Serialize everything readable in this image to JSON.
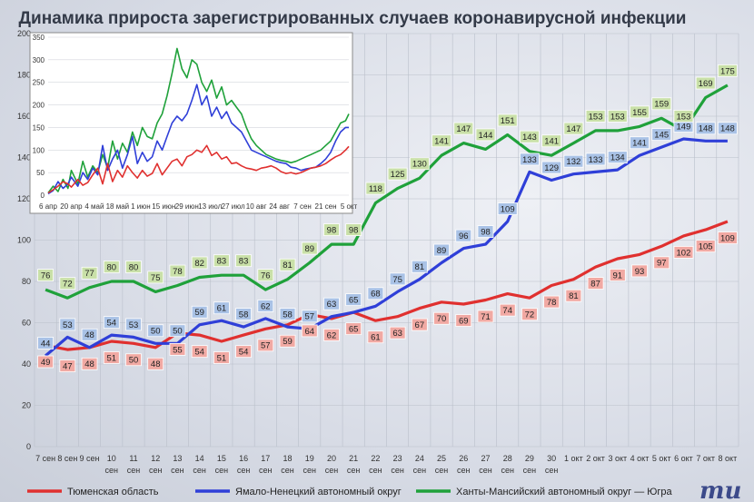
{
  "chart_data": [
    {
      "type": "line",
      "title": "Динамика прироста зарегистрированных случаев коронавирусной инфекции",
      "categories": [
        "7 сен",
        "8 сен",
        "9 сен",
        "10 сен",
        "11 сен",
        "12 сен",
        "13 сен",
        "14 сен",
        "15 сен",
        "16 сен",
        "17 сен",
        "18 сен",
        "19 сен",
        "20 сен",
        "21 сен",
        "22 сен",
        "23 сен",
        "24 сен",
        "25 сен",
        "26 сен",
        "27 сен",
        "28 сен",
        "29 сен",
        "30 сен",
        "1 окт",
        "2 окт",
        "3 окт",
        "4 окт",
        "5 окт",
        "6 окт",
        "7 окт",
        "8 окт"
      ],
      "ylim": [
        0,
        200
      ],
      "yticks": [
        0,
        20,
        40,
        60,
        80,
        100,
        120,
        140,
        160,
        180,
        200
      ],
      "grid": true,
      "legend": "bottom",
      "series": [
        {
          "name": "Тюменская область",
          "color": "#e0302f",
          "label_bg": "#f1a9a3",
          "values": [
            49,
            47,
            48,
            51,
            50,
            48,
            55,
            54,
            51,
            54,
            57,
            59,
            64,
            62,
            65,
            61,
            63,
            67,
            70,
            69,
            71,
            74,
            72,
            78,
            81,
            87,
            91,
            93,
            97,
            102,
            105,
            109
          ]
        },
        {
          "name": "Ямало-Ненецкий автономный округ",
          "color": "#2f3fd8",
          "label_bg": "#a9c2e6",
          "values": [
            44,
            53,
            48,
            54,
            53,
            50,
            50,
            59,
            61,
            58,
            62,
            58,
            57,
            63,
            65,
            68,
            75,
            81,
            89,
            96,
            98,
            109,
            133,
            129,
            132,
            133,
            134,
            141,
            145,
            149,
            148,
            148
          ]
        },
        {
          "name": "Ханты-Мансийский автономный округ — Югра",
          "color": "#1fa13a",
          "label_bg": "#c9e0a8",
          "values": [
            76,
            72,
            77,
            80,
            80,
            75,
            78,
            82,
            83,
            83,
            76,
            81,
            89,
            98,
            98,
            118,
            125,
            130,
            141,
            147,
            144,
            151,
            143,
            141,
            147,
            153,
            153,
            155,
            159,
            153,
            169,
            175
          ]
        }
      ]
    },
    {
      "type": "line",
      "title": "",
      "ylim": [
        0,
        350
      ],
      "yticks": [
        0,
        50,
        100,
        150,
        200,
        250,
        300,
        350
      ],
      "xticks": [
        "6 апр",
        "20 апр",
        "4 май",
        "18 май",
        "1 июн",
        "15 июн",
        "29 июн",
        "13 июл",
        "27 июл",
        "10 авг",
        "24 авг",
        "7 сен",
        "21 сен",
        "5 окт"
      ],
      "grid": true,
      "series": [
        {
          "name": "Тюменская область",
          "color": "#e0302f",
          "x_day": [
            0,
            3,
            6,
            9,
            12,
            14,
            18,
            21,
            24,
            27,
            30,
            33,
            36,
            39,
            42,
            45,
            48,
            51,
            54,
            57,
            60,
            63,
            66,
            69,
            72,
            75,
            78,
            81,
            84,
            87,
            90,
            93,
            96,
            99,
            102,
            105,
            108,
            111,
            114,
            117,
            120,
            123,
            126,
            129,
            132,
            135,
            138,
            141,
            144,
            147,
            150,
            153,
            156,
            159,
            162,
            165,
            168,
            171,
            174,
            177,
            180,
            182
          ],
          "values": [
            5,
            12,
            20,
            30,
            25,
            18,
            35,
            22,
            28,
            45,
            60,
            25,
            70,
            30,
            55,
            40,
            65,
            50,
            38,
            55,
            42,
            48,
            70,
            45,
            60,
            75,
            80,
            65,
            85,
            90,
            100,
            95,
            110,
            88,
            95,
            80,
            85,
            70,
            72,
            65,
            60,
            58,
            55,
            60,
            62,
            65,
            60,
            52,
            48,
            50,
            47,
            50,
            55,
            60,
            62,
            65,
            70,
            78,
            85,
            90,
            100,
            108
          ]
        },
        {
          "name": "Ямало-Ненецкий автономный округ",
          "color": "#2f3fd8",
          "x_day": [
            0,
            3,
            6,
            9,
            12,
            14,
            18,
            21,
            24,
            27,
            30,
            33,
            36,
            39,
            42,
            45,
            48,
            51,
            54,
            57,
            60,
            63,
            66,
            69,
            72,
            75,
            78,
            81,
            84,
            87,
            90,
            93,
            96,
            99,
            102,
            105,
            108,
            111,
            114,
            117,
            120,
            123,
            126,
            129,
            132,
            135,
            138,
            141,
            144,
            147,
            150,
            153,
            156,
            159,
            162,
            165,
            168,
            171,
            174,
            177,
            180,
            182
          ],
          "values": [
            3,
            10,
            30,
            15,
            25,
            40,
            20,
            50,
            35,
            60,
            45,
            110,
            55,
            80,
            100,
            60,
            90,
            130,
            70,
            95,
            75,
            85,
            120,
            100,
            130,
            160,
            175,
            165,
            180,
            210,
            245,
            200,
            220,
            175,
            195,
            170,
            185,
            160,
            150,
            140,
            120,
            100,
            95,
            90,
            85,
            80,
            75,
            72,
            70,
            62,
            60,
            55,
            58,
            60,
            62,
            70,
            80,
            95,
            120,
            140,
            150,
            150
          ]
        },
        {
          "name": "Ханты-Мансийский автономный округ — Югра",
          "color": "#1fa13a",
          "x_day": [
            0,
            3,
            6,
            9,
            12,
            14,
            18,
            21,
            24,
            27,
            30,
            33,
            36,
            39,
            42,
            45,
            48,
            51,
            54,
            57,
            60,
            63,
            66,
            69,
            72,
            75,
            78,
            81,
            84,
            87,
            90,
            93,
            96,
            99,
            102,
            105,
            108,
            111,
            114,
            117,
            120,
            123,
            126,
            129,
            132,
            135,
            138,
            141,
            144,
            147,
            150,
            153,
            156,
            159,
            162,
            165,
            168,
            171,
            174,
            177,
            180,
            182
          ],
          "values": [
            5,
            20,
            8,
            35,
            15,
            55,
            25,
            75,
            40,
            65,
            50,
            90,
            60,
            120,
            80,
            115,
            95,
            140,
            110,
            150,
            130,
            125,
            160,
            180,
            220,
            270,
            325,
            280,
            260,
            300,
            290,
            250,
            230,
            255,
            215,
            240,
            200,
            210,
            195,
            180,
            150,
            125,
            110,
            100,
            90,
            85,
            80,
            77,
            75,
            72,
            75,
            80,
            85,
            90,
            95,
            100,
            110,
            120,
            140,
            160,
            165,
            180
          ]
        }
      ]
    }
  ],
  "legend": {
    "items": [
      "Тюменская область",
      "Ямало-Ненецкий автономный округ",
      "Ханты-Мансийский автономный округ — Югра"
    ]
  },
  "logo": {
    "text": "mu"
  }
}
